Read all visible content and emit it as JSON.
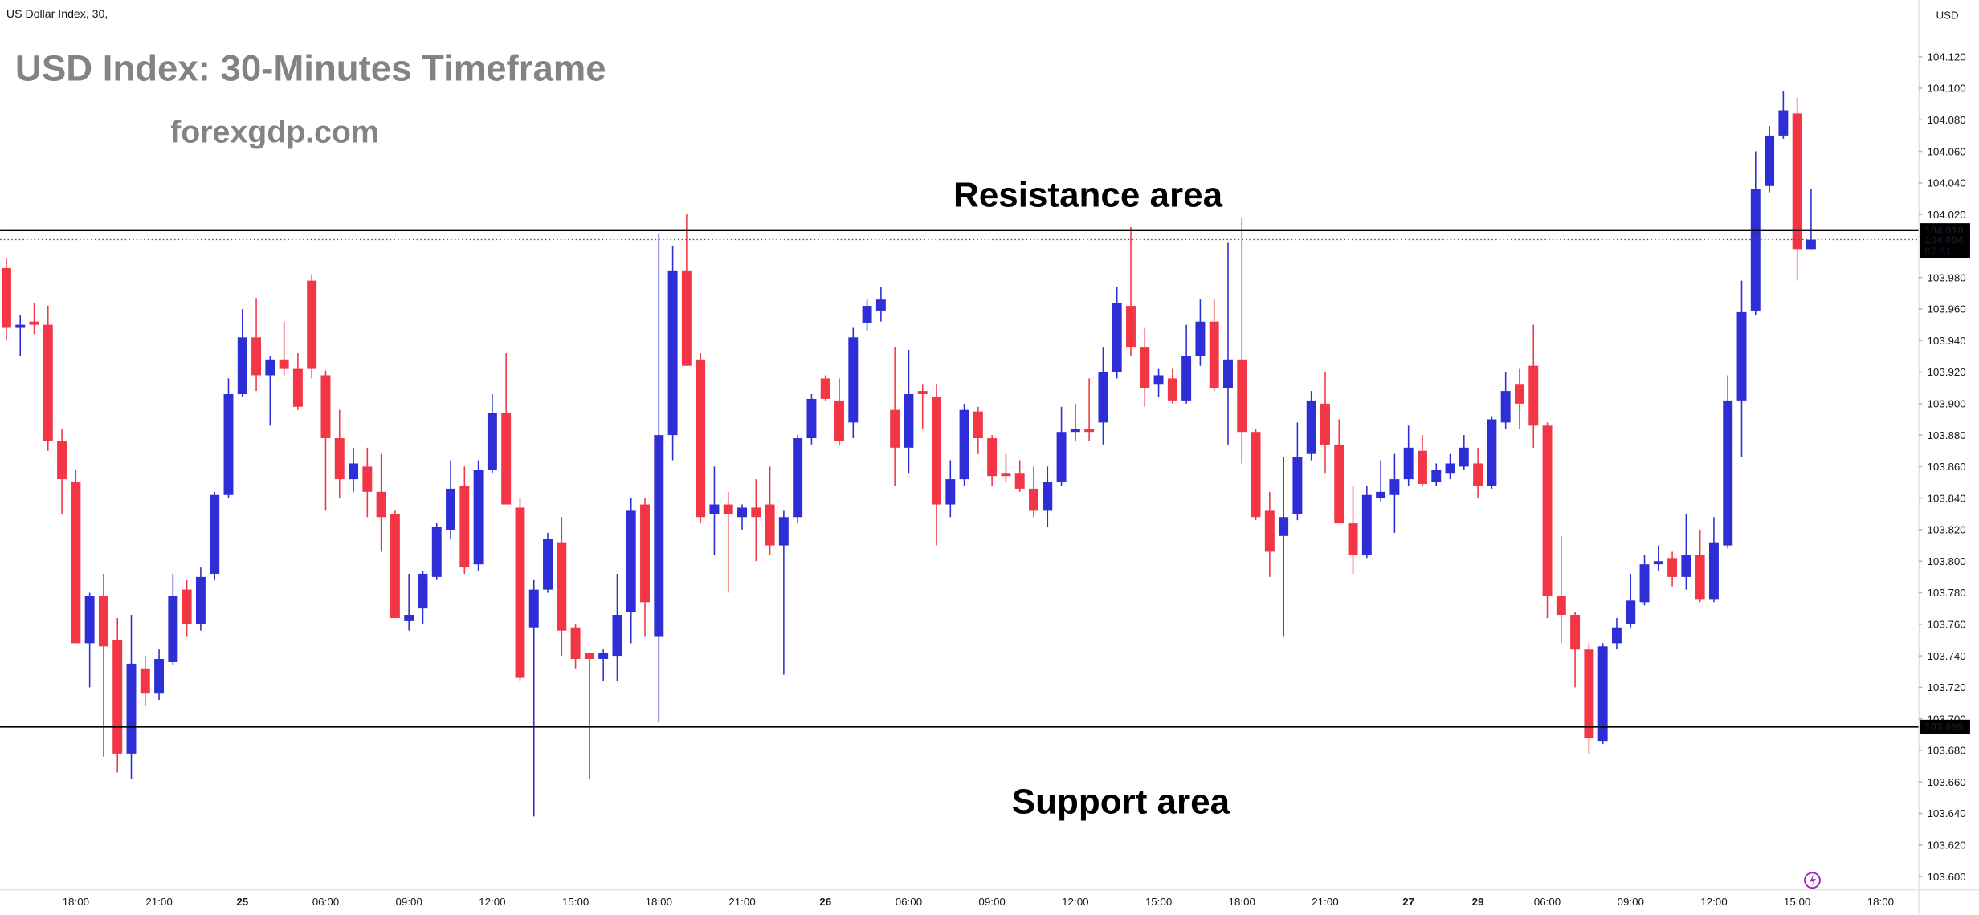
{
  "chart_data": {
    "type": "candlestick",
    "symbol": "US Dollar Index, 30,",
    "currency": "USD",
    "title": "USD Index: 30-Minutes Timeframe",
    "subtitle": "forexgdp.com",
    "annotations": [
      "Resistance area",
      "Support area"
    ],
    "levels": [
      {
        "value": 104.01,
        "label": "104.010"
      },
      {
        "value": 103.695,
        "label": "103.695"
      }
    ],
    "last_price": {
      "value": 104.004,
      "label": "104.004"
    },
    "countdown": "07:31",
    "up_color": "#2e2ed6",
    "down_color": "#f23645",
    "ylim": [
      103.592,
      104.156
    ],
    "yticks": [
      {
        "value": 103.6,
        "label": "103.600"
      },
      {
        "value": 103.62,
        "label": "103.620"
      },
      {
        "value": 103.64,
        "label": "103.640"
      },
      {
        "value": 103.66,
        "label": "103.660"
      },
      {
        "value": 103.68,
        "label": "103.680"
      },
      {
        "value": 103.7,
        "label": "103.700"
      },
      {
        "value": 103.72,
        "label": "103.720"
      },
      {
        "value": 103.74,
        "label": "103.740"
      },
      {
        "value": 103.76,
        "label": "103.760"
      },
      {
        "value": 103.78,
        "label": "103.780"
      },
      {
        "value": 103.8,
        "label": "103.800"
      },
      {
        "value": 103.82,
        "label": "103.820"
      },
      {
        "value": 103.84,
        "label": "103.840"
      },
      {
        "value": 103.86,
        "label": "103.860"
      },
      {
        "value": 103.88,
        "label": "103.880"
      },
      {
        "value": 103.9,
        "label": "103.900"
      },
      {
        "value": 103.92,
        "label": "103.920"
      },
      {
        "value": 103.94,
        "label": "103.940"
      },
      {
        "value": 103.96,
        "label": "103.960"
      },
      {
        "value": 103.98,
        "label": "103.980"
      },
      {
        "value": 104.02,
        "label": "104.020"
      },
      {
        "value": 104.04,
        "label": "104.040"
      },
      {
        "value": 104.06,
        "label": "104.060"
      },
      {
        "value": 104.08,
        "label": "104.080"
      },
      {
        "value": 104.1,
        "label": "104.100"
      },
      {
        "value": 104.12,
        "label": "104.120"
      }
    ],
    "categories": [
      null,
      null,
      null,
      null,
      null,
      "18:00",
      null,
      null,
      null,
      null,
      null,
      "21:00",
      null,
      null,
      null,
      null,
      null,
      "25",
      null,
      null,
      null,
      null,
      null,
      "06:00",
      null,
      null,
      null,
      null,
      null,
      "09:00",
      null,
      null,
      null,
      null,
      null,
      "12:00",
      null,
      null,
      null,
      null,
      null,
      "15:00",
      null,
      null,
      null,
      null,
      null,
      "18:00",
      null,
      null,
      null,
      null,
      null,
      "21:00",
      null,
      null,
      null,
      null,
      null,
      "26",
      null,
      null,
      null,
      null,
      null,
      "06:00",
      null,
      null,
      null,
      null,
      null,
      "09:00",
      null,
      null,
      null,
      null,
      null,
      "12:00",
      null,
      null,
      null,
      null,
      null,
      "15:00",
      null,
      null,
      null,
      null,
      null,
      "18:00",
      null,
      null,
      null,
      null,
      null,
      "21:00",
      null,
      null,
      null,
      null,
      null,
      "27",
      null,
      null,
      null,
      null,
      "29",
      null,
      null,
      null,
      null,
      "06:00",
      null,
      null,
      null,
      null,
      null,
      "09:00",
      null,
      null,
      null,
      null,
      null,
      "12:00",
      null,
      null,
      null,
      null,
      null,
      "15:00",
      null,
      null,
      null,
      null,
      null,
      "18:00"
    ],
    "open": [
      103.986,
      103.948,
      103.952,
      103.95,
      103.876,
      103.85,
      103.748,
      103.778,
      103.75,
      103.678,
      103.732,
      103.716,
      103.736,
      103.782,
      103.76,
      103.792,
      103.842,
      103.906,
      103.942,
      103.918,
      103.928,
      103.922,
      103.978,
      103.918,
      103.878,
      103.852,
      103.86,
      103.844,
      103.83,
      103.762,
      103.77,
      103.79,
      103.82,
      103.848,
      103.798,
      103.858,
      103.894,
      103.834,
      103.758,
      103.782,
      103.812,
      103.758,
      103.742,
      103.738,
      103.74,
      103.768,
      103.836,
      103.752,
      103.88,
      103.984,
      103.928,
      103.83,
      103.836,
      103.828,
      103.834,
      103.836,
      103.81,
      103.828,
      103.878,
      103.916,
      103.902,
      103.888,
      103.951,
      103.959,
      103.896,
      103.872,
      103.908,
      103.904,
      103.836,
      103.852,
      103.895,
      103.878,
      103.856,
      103.856,
      103.846,
      103.832,
      103.85,
      103.882,
      103.884,
      103.888,
      103.92,
      103.962,
      103.936,
      103.912,
      103.916,
      103.902,
      103.93,
      103.952,
      103.91,
      103.928,
      103.882,
      103.832,
      103.816,
      103.83,
      103.868,
      103.9,
      103.874,
      103.824,
      103.804,
      103.84,
      103.842,
      103.852,
      103.87,
      103.85,
      103.856,
      103.86,
      103.862,
      103.848,
      103.888,
      103.912,
      103.924,
      103.886,
      103.778,
      103.766,
      103.744,
      103.686,
      103.748,
      103.76,
      103.774,
      103.798,
      103.802,
      103.79,
      103.804,
      103.776,
      103.81,
      103.902,
      103.959,
      104.038,
      104.07,
      104.084,
      103.998,
      null,
      null,
      null,
      null,
      null
    ],
    "high": [
      103.992,
      103.956,
      103.964,
      103.962,
      103.884,
      103.858,
      103.78,
      103.792,
      103.764,
      103.766,
      103.74,
      103.744,
      103.792,
      103.788,
      103.796,
      103.844,
      103.916,
      103.96,
      103.967,
      103.93,
      103.952,
      103.932,
      103.982,
      103.921,
      103.896,
      103.872,
      103.872,
      103.868,
      103.832,
      103.792,
      103.794,
      103.824,
      103.864,
      103.86,
      103.864,
      103.906,
      103.932,
      103.84,
      103.788,
      103.818,
      103.828,
      103.76,
      103.742,
      103.744,
      103.792,
      103.84,
      103.84,
      104.008,
      104.0,
      104.02,
      103.932,
      103.86,
      103.844,
      103.836,
      103.852,
      103.86,
      103.832,
      103.88,
      103.906,
      103.918,
      103.916,
      103.948,
      103.966,
      103.974,
      103.936,
      103.934,
      103.912,
      103.912,
      103.864,
      103.9,
      103.898,
      103.88,
      103.868,
      103.864,
      103.86,
      103.86,
      103.898,
      103.9,
      103.916,
      103.936,
      103.974,
      104.012,
      103.948,
      103.922,
      103.922,
      103.95,
      103.966,
      103.966,
      104.002,
      104.018,
      103.884,
      103.844,
      103.866,
      103.888,
      103.908,
      103.92,
      103.89,
      103.848,
      103.848,
      103.864,
      103.868,
      103.886,
      103.88,
      103.862,
      103.868,
      103.88,
      103.872,
      103.892,
      103.92,
      103.922,
      103.95,
      103.888,
      103.816,
      103.768,
      103.748,
      103.748,
      103.764,
      103.792,
      103.804,
      103.81,
      103.806,
      103.83,
      103.82,
      103.828,
      103.918,
      103.978,
      104.06,
      104.076,
      104.098,
      104.094,
      104.036,
      null,
      null,
      null,
      null,
      null
    ],
    "low": [
      103.94,
      103.93,
      103.944,
      103.87,
      103.83,
      103.748,
      103.72,
      103.676,
      103.666,
      103.662,
      103.708,
      103.712,
      103.734,
      103.752,
      103.756,
      103.788,
      103.84,
      103.904,
      103.908,
      103.886,
      103.918,
      103.896,
      103.916,
      103.832,
      103.84,
      103.844,
      103.828,
      103.806,
      103.764,
      103.756,
      103.76,
      103.788,
      103.814,
      103.792,
      103.794,
      103.856,
      103.836,
      103.724,
      103.638,
      103.78,
      103.74,
      103.732,
      103.662,
      103.724,
      103.724,
      103.748,
      103.752,
      103.698,
      103.864,
      103.924,
      103.824,
      103.804,
      103.78,
      103.82,
      103.8,
      103.804,
      103.728,
      103.824,
      103.874,
      103.902,
      103.874,
      103.878,
      103.946,
      103.952,
      103.848,
      103.856,
      103.884,
      103.81,
      103.828,
      103.848,
      103.868,
      103.848,
      103.85,
      103.844,
      103.828,
      103.822,
      103.848,
      103.876,
      103.876,
      103.874,
      103.916,
      103.93,
      103.898,
      103.904,
      103.9,
      103.9,
      103.924,
      103.908,
      103.874,
      103.862,
      103.826,
      103.79,
      103.752,
      103.826,
      103.864,
      103.856,
      103.824,
      103.792,
      103.802,
      103.838,
      103.818,
      103.848,
      103.848,
      103.848,
      103.852,
      103.858,
      103.84,
      103.846,
      103.884,
      103.884,
      103.872,
      103.764,
      103.748,
      103.72,
      103.678,
      103.684,
      103.744,
      103.758,
      103.772,
      103.794,
      103.784,
      103.782,
      103.774,
      103.774,
      103.808,
      103.866,
      103.956,
      104.034,
      104.068,
      103.978,
      103.998,
      null,
      null,
      null,
      null,
      null
    ],
    "close": [
      103.948,
      103.95,
      103.95,
      103.876,
      103.852,
      103.748,
      103.778,
      103.746,
      103.678,
      103.735,
      103.716,
      103.738,
      103.778,
      103.76,
      103.79,
      103.842,
      103.906,
      103.942,
      103.918,
      103.928,
      103.922,
      103.898,
      103.922,
      103.878,
      103.852,
      103.862,
      103.844,
      103.828,
      103.764,
      103.766,
      103.792,
      103.822,
      103.846,
      103.796,
      103.858,
      103.894,
      103.836,
      103.726,
      103.782,
      103.814,
      103.756,
      103.738,
      103.738,
      103.742,
      103.766,
      103.832,
      103.774,
      103.88,
      103.984,
      103.924,
      103.828,
      103.836,
      103.83,
      103.834,
      103.828,
      103.81,
      103.828,
      103.878,
      103.903,
      103.903,
      103.876,
      103.942,
      103.962,
      103.966,
      103.872,
      103.906,
      103.906,
      103.836,
      103.852,
      103.896,
      103.878,
      103.854,
      103.854,
      103.846,
      103.832,
      103.85,
      103.882,
      103.884,
      103.882,
      103.92,
      103.964,
      103.936,
      103.91,
      103.918,
      103.902,
      103.93,
      103.952,
      103.91,
      103.928,
      103.882,
      103.828,
      103.806,
      103.828,
      103.866,
      103.902,
      103.874,
      103.824,
      103.804,
      103.842,
      103.844,
      103.852,
      103.872,
      103.849,
      103.858,
      103.862,
      103.872,
      103.848,
      103.89,
      103.908,
      103.9,
      103.886,
      103.778,
      103.766,
      103.744,
      103.688,
      103.746,
      103.758,
      103.775,
      103.798,
      103.8,
      103.79,
      103.804,
      103.776,
      103.812,
      103.902,
      103.958,
      104.036,
      104.07,
      104.086,
      103.998,
      104.004,
      null,
      null,
      null,
      null,
      null
    ]
  }
}
